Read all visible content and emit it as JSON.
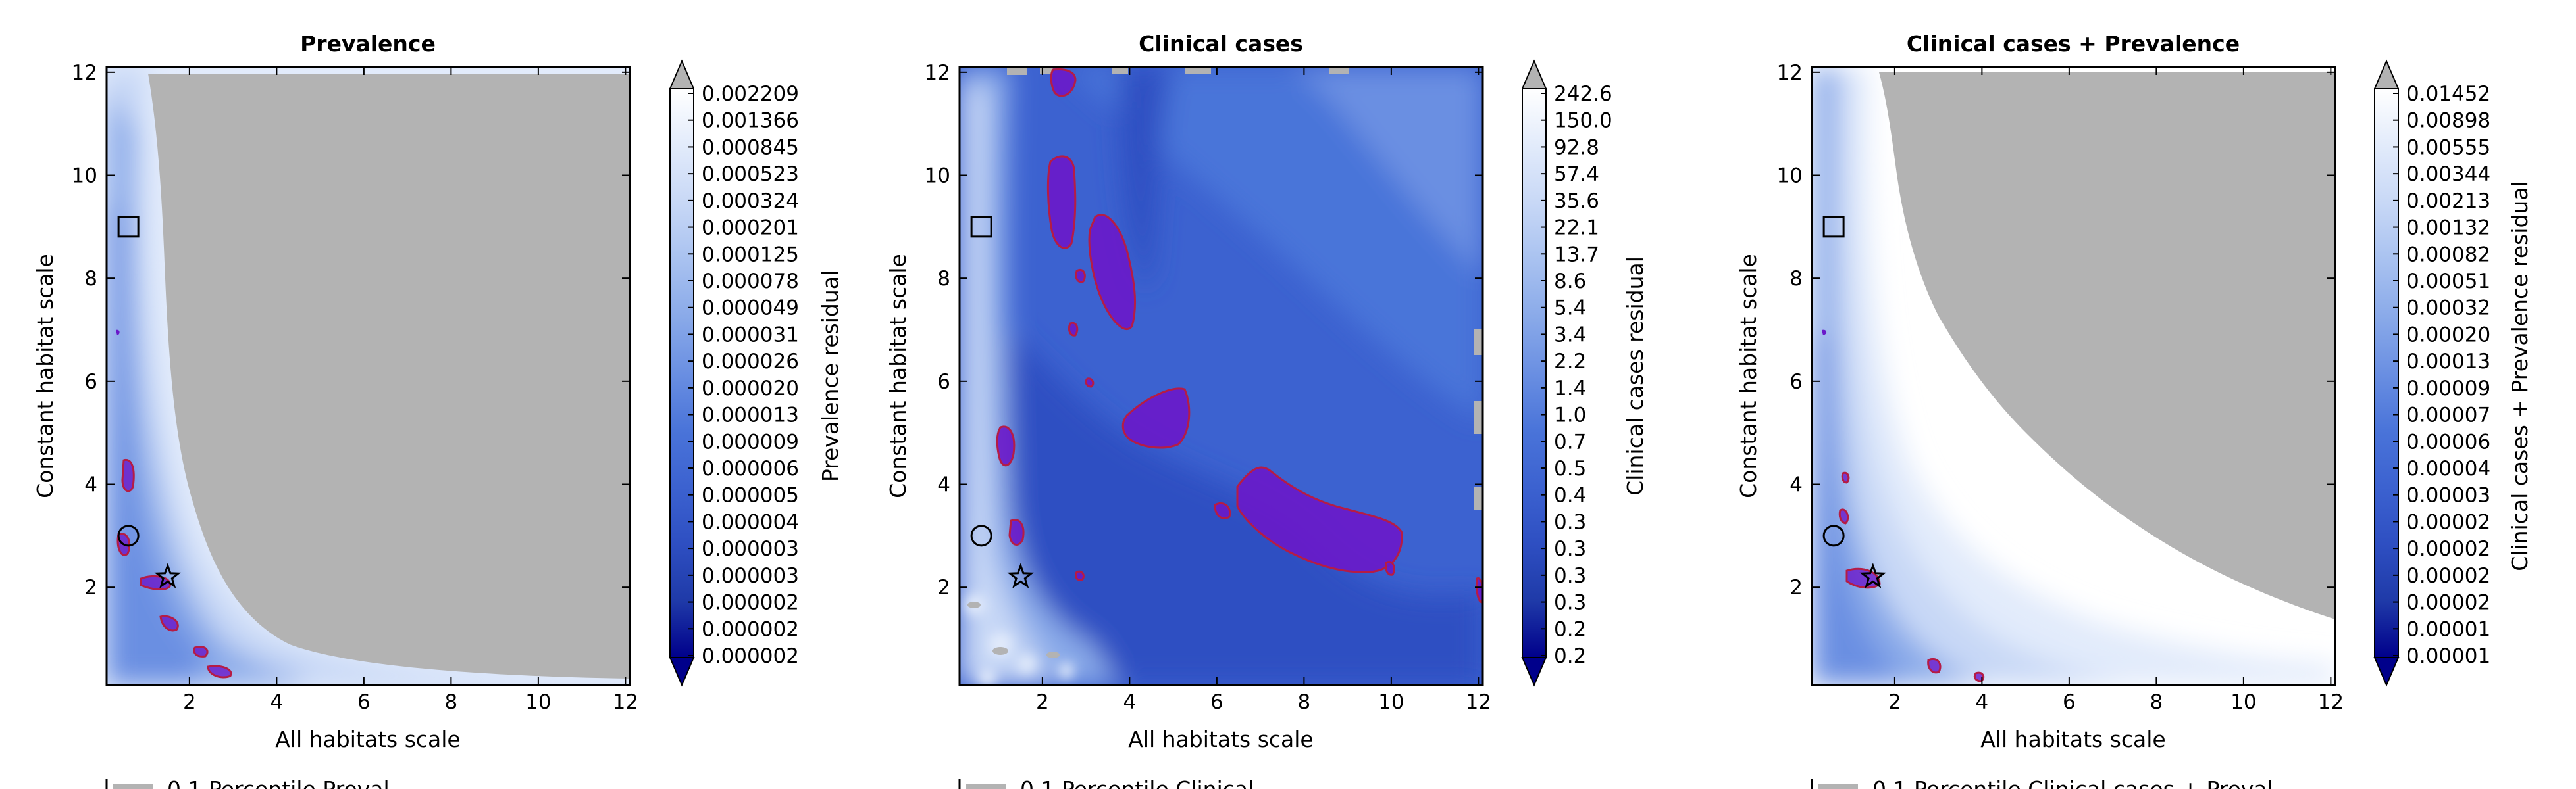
{
  "colors": {
    "background": "#ffffff",
    "missing_gray": "#b3b3b3",
    "highlight_fill": "#6a18c9",
    "highlight_edge": "#b51c45",
    "colormap": [
      "#00008b",
      "#1f3aa8",
      "#2e4fc2",
      "#3c62d0",
      "#4a74d9",
      "#6a8fe2",
      "#8aaae9",
      "#a9c2f0",
      "#c8d8f6",
      "#e2ebfb",
      "#ffffff"
    ]
  },
  "chart_data": [
    {
      "type": "heatmap",
      "title": "Prevalence",
      "xlabel": "All habitats scale",
      "ylabel": "Constant habitat scale",
      "colorbar_label": "Prevalence residual",
      "xlim": [
        0.1,
        12.1
      ],
      "ylim": [
        0.1,
        12.1
      ],
      "xticks": [
        "2",
        "4",
        "6",
        "8",
        "10",
        "12"
      ],
      "yticks": [
        "2",
        "4",
        "6",
        "8",
        "10",
        "12"
      ],
      "colorbar_ticks": [
        "0.002209",
        "0.001366",
        "0.000845",
        "0.000523",
        "0.000324",
        "0.000201",
        "0.000125",
        "0.000078",
        "0.000049",
        "0.000031",
        "0.000026",
        "0.000020",
        "0.000013",
        "0.000009",
        "0.000006",
        "0.000005",
        "0.000004",
        "0.000003",
        "0.000003",
        "0.000002",
        "0.000002",
        "0.000002"
      ],
      "markers": [
        {
          "shape": "square",
          "x": 0.6,
          "y": 9.0
        },
        {
          "shape": "circle",
          "x": 0.6,
          "y": 3.0
        },
        {
          "shape": "star",
          "x": 1.5,
          "y": 2.2
        }
      ],
      "legend_fragment": "0.1 Percentile Preval..."
    },
    {
      "type": "heatmap",
      "title": "Clinical cases",
      "xlabel": "All habitats scale",
      "ylabel": "Constant habitat scale",
      "colorbar_label": "Clinical cases residual",
      "xlim": [
        0.1,
        12.1
      ],
      "ylim": [
        0.1,
        12.1
      ],
      "xticks": [
        "2",
        "4",
        "6",
        "8",
        "10",
        "12"
      ],
      "yticks": [
        "2",
        "4",
        "6",
        "8",
        "10",
        "12"
      ],
      "colorbar_ticks": [
        "242.6",
        "150.0",
        "92.8",
        "57.4",
        "35.6",
        "22.1",
        "13.7",
        "8.6",
        "5.4",
        "3.4",
        "2.2",
        "1.4",
        "1.0",
        "0.7",
        "0.5",
        "0.4",
        "0.3",
        "0.3",
        "0.3",
        "0.3",
        "0.2",
        "0.2"
      ],
      "markers": [
        {
          "shape": "square",
          "x": 0.6,
          "y": 9.0
        },
        {
          "shape": "circle",
          "x": 0.6,
          "y": 3.0
        },
        {
          "shape": "star",
          "x": 1.5,
          "y": 2.2
        }
      ],
      "legend_fragment": "0.1 Percentile Clinical..."
    },
    {
      "type": "heatmap",
      "title": "Clinical cases + Prevalence",
      "xlabel": "All habitats scale",
      "ylabel": "Constant habitat scale",
      "colorbar_label": "Clinical cases + Prevalence residual",
      "xlim": [
        0.1,
        12.1
      ],
      "ylim": [
        0.1,
        12.1
      ],
      "xticks": [
        "2",
        "4",
        "6",
        "8",
        "10",
        "12"
      ],
      "yticks": [
        "2",
        "4",
        "6",
        "8",
        "10",
        "12"
      ],
      "colorbar_ticks": [
        "0.01452",
        "0.00898",
        "0.00555",
        "0.00344",
        "0.00213",
        "0.00132",
        "0.00082",
        "0.00051",
        "0.00032",
        "0.00020",
        "0.00013",
        "0.00009",
        "0.00007",
        "0.00006",
        "0.00004",
        "0.00003",
        "0.00002",
        "0.00002",
        "0.00002",
        "0.00002",
        "0.00001",
        "0.00001"
      ],
      "markers": [
        {
          "shape": "square",
          "x": 0.6,
          "y": 9.0
        },
        {
          "shape": "circle",
          "x": 0.6,
          "y": 3.0
        },
        {
          "shape": "star",
          "x": 1.5,
          "y": 2.2
        }
      ],
      "legend_fragment": "0.1 Percentile Clinical cases + Preval..."
    }
  ]
}
